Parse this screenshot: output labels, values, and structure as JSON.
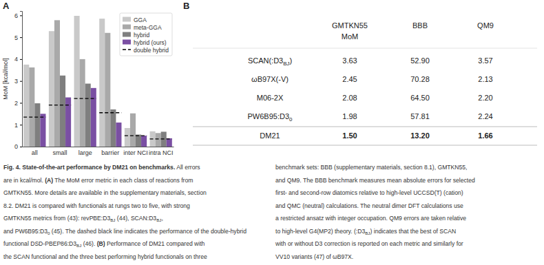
{
  "chart_data": {
    "type": "bar",
    "y_label": "MoM [kcal/mol]",
    "categories": [
      "all",
      "small",
      "large",
      "barrier",
      "inter NCI",
      "intra NCI"
    ],
    "series": [
      {
        "name": "GGA",
        "color": "#c9c9c9",
        "values": [
          3.75,
          5.28,
          5.98,
          5.85,
          0.85,
          0.7
        ]
      },
      {
        "name": "meta-GGA",
        "color": "#a9a9a9",
        "values": [
          3.62,
          5.78,
          4.0,
          5.2,
          1.52,
          0.62
        ]
      },
      {
        "name": "hybrid",
        "color": "#7f7f7f",
        "values": [
          1.98,
          3.25,
          2.88,
          1.7,
          0.55,
          0.68
        ]
      },
      {
        "name": "hybrid (ours)",
        "color": "#7a4fa3",
        "values": [
          1.5,
          2.25,
          2.68,
          1.1,
          0.5,
          0.38
        ]
      },
      {
        "name": "double hybrid",
        "type": "line",
        "line_style": "dashed",
        "color": "#000000",
        "values": [
          1.35,
          1.9,
          2.2,
          1.55,
          0.5,
          0.35
        ]
      }
    ],
    "ylim": [
      0,
      6.2
    ],
    "yticks": [
      0,
      1,
      2,
      3,
      4,
      5,
      6
    ],
    "grid": false,
    "legend": "upper right"
  },
  "panel_labels": [
    "A",
    "B"
  ],
  "table": {
    "columns": [
      [
        "GMTKN55",
        "MoM"
      ],
      [
        "BBB"
      ],
      [
        "QM9"
      ]
    ],
    "rows": [
      {
        "label": [
          "SCAN(:D3",
          {
            "sub": "BJ"
          },
          ")"
        ],
        "cells": [
          "3.63",
          "52.90",
          "3.57"
        ]
      },
      {
        "label": [
          "ωB97X(-V)"
        ],
        "cells": [
          "2.45",
          "70.28",
          "2.13"
        ]
      },
      {
        "label": [
          "M06-2X"
        ],
        "cells": [
          "2.08",
          "64.50",
          "2.20"
        ]
      },
      {
        "label": [
          "PW6B95:D3",
          {
            "sub": "0"
          }
        ],
        "cells": [
          "1.98",
          "57.81",
          "2.24"
        ]
      },
      {
        "label": [
          "DM21"
        ],
        "cells": [
          "1.50",
          "13.20",
          "1.66"
        ],
        "bold_cells": true
      }
    ]
  },
  "caption": {
    "left": [
      [
        {
          "b": "Fig. 4. State-of-the-art performance by DM21 on benchmarks."
        },
        " All errors"
      ],
      [
        "are in kcal/mol. ",
        {
          "b": "(A)"
        },
        " The MoM error metric in each class of reactions from"
      ],
      [
        "GMTKN55. More details are available in the supplementary materials, section"
      ],
      [
        "8.2. DM21 is compared with functionals at rungs two to five, with strong"
      ],
      [
        "GMTKN55 metrics from (43): revPBE:D3",
        {
          "sub": "BJ"
        },
        " (44), SCAN:D3",
        {
          "sub": "BJ"
        },
        ","
      ],
      [
        "and PW6B95:D3",
        {
          "sub": "0"
        },
        " (45). The dashed black line indicates the performance of the double-hybrid"
      ],
      [
        "functional DSD-PBEP86:D3",
        {
          "sub": "BJ"
        },
        " (46). ",
        {
          "b": "(B)"
        },
        " Performance of DM21 compared with"
      ],
      [
        "the SCAN functional and the three best performing hybrid functionals on three"
      ]
    ],
    "right": [
      [
        "benchmark sets: BBB (supplementary materials, section 8.1), GMTKN55,"
      ],
      [
        "and QM9. The BBB benchmark measures mean absolute errors for selected"
      ],
      [
        "first- and second-row diatomics relative to high-level UCCSD(T) (cation)"
      ],
      [
        "and QMC (neutral) calculations. The neutral dimer DFT calculations use"
      ],
      [
        "a restricted ansatz with integer occupation. QM9 errors are taken relative"
      ],
      [
        "to high-level G4(MP2) theory. (:D3",
        {
          "sub": "BJ"
        },
        ") indicates that the best of SCAN"
      ],
      [
        "with or without D3 correction is reported on each metric and similarly for"
      ],
      [
        "VV10 variants (47) of ωB97X."
      ]
    ]
  }
}
